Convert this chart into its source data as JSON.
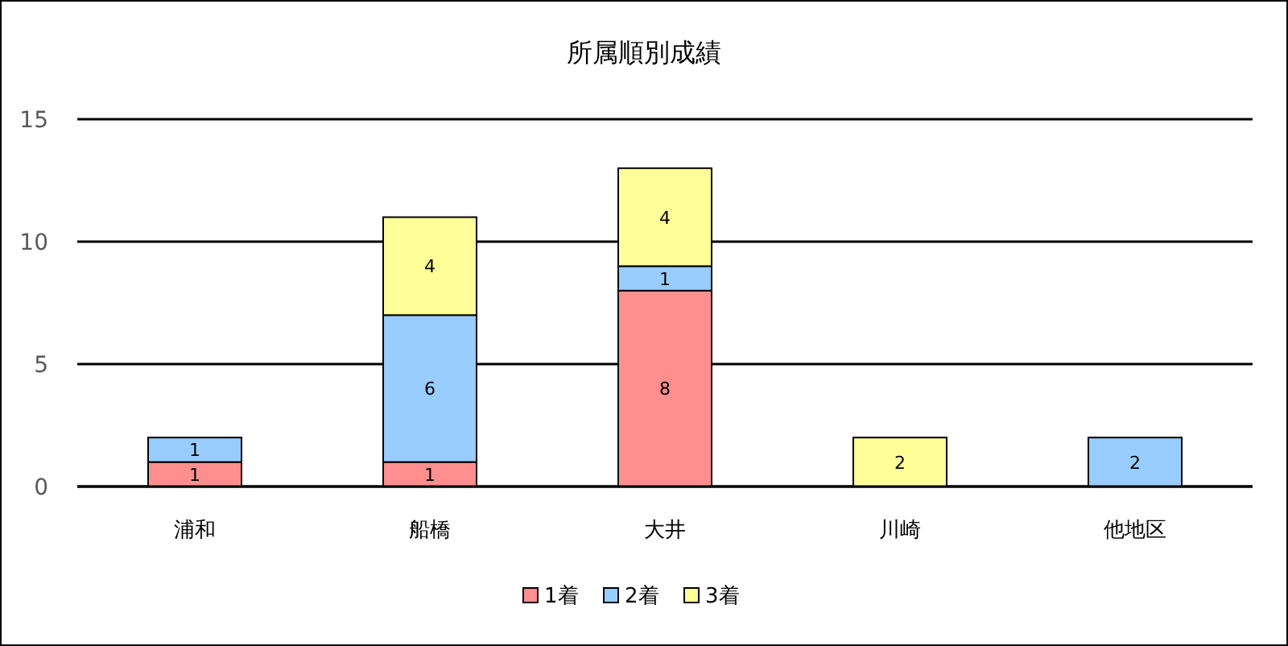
{
  "chart_data": {
    "type": "bar",
    "stacked": true,
    "title": "所属順別成績",
    "categories": [
      "浦和",
      "船橋",
      "大井",
      "川崎",
      "他地区"
    ],
    "series": [
      {
        "name": "1着",
        "color": "#ff8f8f",
        "values": [
          1,
          1,
          8,
          null,
          null
        ]
      },
      {
        "name": "2着",
        "color": "#99ccff",
        "values": [
          1,
          6,
          1,
          null,
          2
        ]
      },
      {
        "name": "3着",
        "color": "#ffff99",
        "values": [
          null,
          4,
          4,
          2,
          null
        ]
      }
    ],
    "ylim": [
      0,
      15
    ],
    "yticks": [
      0,
      5,
      10,
      15
    ],
    "grid": "y",
    "legend": "bottom",
    "data_labels": true
  }
}
